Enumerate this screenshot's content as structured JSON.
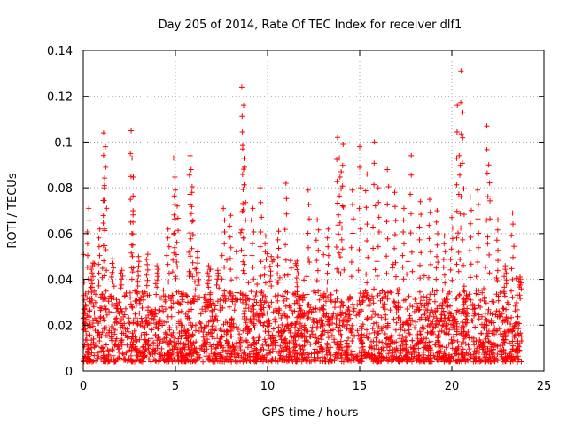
{
  "chart_data": {
    "type": "scatter",
    "title": "Day 205 of 2014, Rate Of TEC Index for receiver dlf1",
    "xlabel": "GPS time / hours",
    "ylabel": "ROTI / TECUs",
    "xlim": [
      0,
      25
    ],
    "ylim": [
      0,
      0.14
    ],
    "xticks": [
      0,
      5,
      10,
      15,
      20,
      25
    ],
    "yticks": [
      0,
      0.02,
      0.04,
      0.06,
      0.08,
      0.1,
      0.12,
      0.14
    ],
    "xtick_labels": [
      "0",
      "5",
      "10",
      "15",
      "20",
      "25"
    ],
    "ytick_labels": [
      "0",
      "0.02",
      "0.04",
      "0.06",
      "0.08",
      "0.1",
      "0.12",
      "0.14"
    ],
    "grid": true,
    "marker": "plus",
    "color": "#ff0000",
    "series": [
      {
        "name": "dlf1",
        "x": [
          0.05,
          0.3,
          0.5,
          0.9,
          1.1,
          1.15,
          1.2,
          1.6,
          2.1,
          2.6,
          2.65,
          2.7,
          3.0,
          3.5,
          4.0,
          4.6,
          4.9,
          5.0,
          5.1,
          5.8,
          5.85,
          5.9,
          6.2,
          6.8,
          7.3,
          7.6,
          8.0,
          8.6,
          8.65,
          8.7,
          8.75,
          9.2,
          9.6,
          9.9,
          10.2,
          10.6,
          11.0,
          11.6,
          12.2,
          12.7,
          13.3,
          13.8,
          13.9,
          14.0,
          14.1,
          14.6,
          15.0,
          15.4,
          15.8,
          16.0,
          16.5,
          16.9,
          17.4,
          17.8,
          18.3,
          18.8,
          19.2,
          19.6,
          20.0,
          20.3,
          20.4,
          20.5,
          20.6,
          21.0,
          21.4,
          21.9,
          22.0,
          22.5,
          22.9,
          23.3,
          23.7
        ],
        "y": [
          0.021,
          0.071,
          0.046,
          0.062,
          0.104,
          0.081,
          0.098,
          0.049,
          0.044,
          0.105,
          0.093,
          0.07,
          0.05,
          0.051,
          0.046,
          0.062,
          0.093,
          0.079,
          0.072,
          0.094,
          0.088,
          0.078,
          0.052,
          0.046,
          0.044,
          0.071,
          0.068,
          0.124,
          0.097,
          0.116,
          0.089,
          0.071,
          0.08,
          0.059,
          0.05,
          0.061,
          0.082,
          0.048,
          0.079,
          0.066,
          0.062,
          0.102,
          0.093,
          0.087,
          0.099,
          0.079,
          0.098,
          0.086,
          0.1,
          0.08,
          0.088,
          0.078,
          0.071,
          0.094,
          0.074,
          0.075,
          0.07,
          0.059,
          0.067,
          0.116,
          0.094,
          0.131,
          0.113,
          0.076,
          0.079,
          0.107,
          0.09,
          0.066,
          0.046,
          0.069,
          0.041
        ]
      }
    ],
    "dense_band": {
      "description_values": "most points between 0.004 and 0.035 TECU/min across 0 to 23.8 hours",
      "x_range": [
        0,
        23.8
      ],
      "y_range": [
        0.004,
        0.035
      ]
    }
  }
}
